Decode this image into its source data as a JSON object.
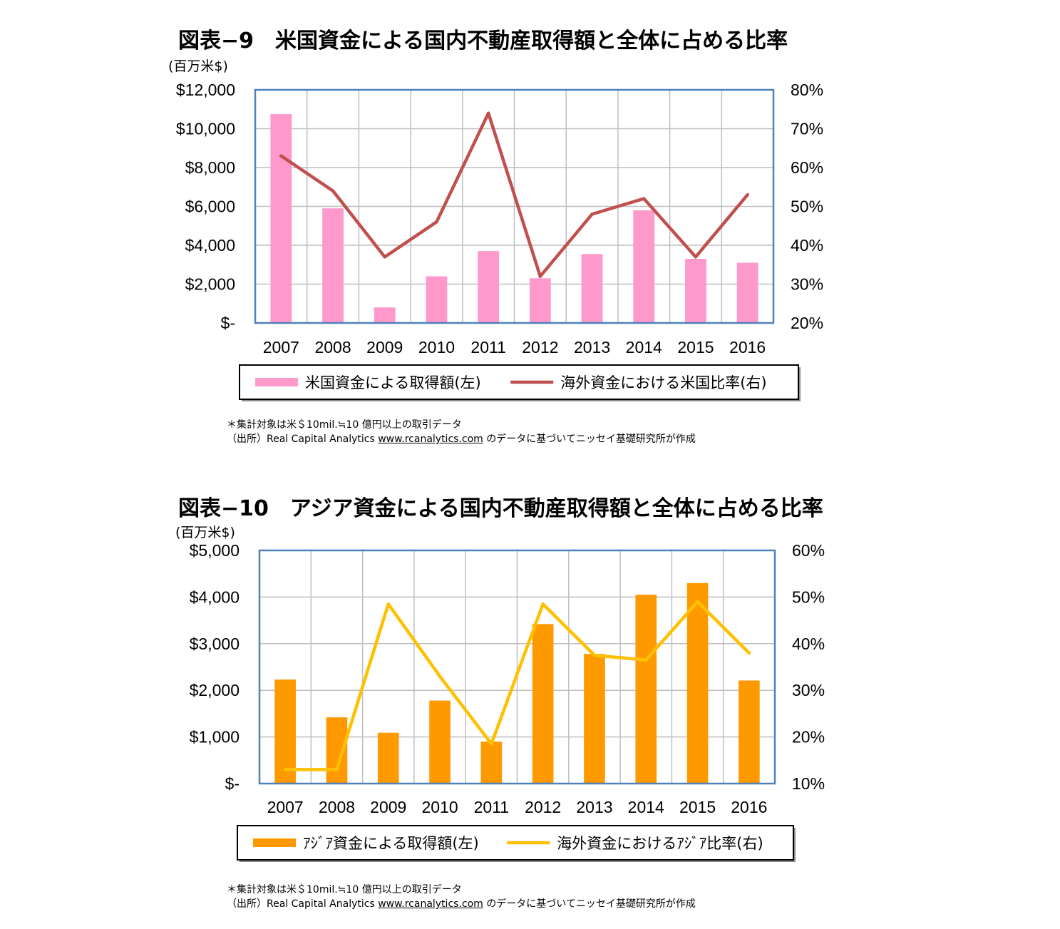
{
  "charts": [
    {
      "title": "図表−9　米国資金による国内不動産取得額と全体に占める比率",
      "unit": "(百万米$)",
      "footnote_line1": "＊集計対象は米＄10mil.≒10 億円以上の取引データ",
      "footnote_line2_prefix": "（出所）Real Capital Analytics ",
      "footnote_url": "www.rcanalytics.com",
      "footnote_line2_suffix": " のデータに基づいてニッセイ基礎研究所が作成"
    },
    {
      "title": "図表−10　アジア資金による国内不動産取得額と全体に占める比率",
      "unit": "(百万米$)",
      "footnote_line1": "＊集計対象は米＄10mil.≒10 億円以上の取引データ",
      "footnote_line2_prefix": "（出所）Real Capital Analytics ",
      "footnote_url": "www.rcanalytics.com",
      "footnote_line2_suffix": " のデータに基づいてニッセイ基礎研究所が作成"
    }
  ],
  "chart_data": [
    {
      "type": "bar+line",
      "categories": [
        "2007",
        "2008",
        "2009",
        "2010",
        "2011",
        "2012",
        "2013",
        "2014",
        "2015",
        "2016"
      ],
      "series": [
        {
          "name": "米国資金による取得額(左)",
          "type": "bar",
          "axis": "left",
          "color": "#ff99cc",
          "values": [
            10750,
            5900,
            800,
            2400,
            3700,
            2300,
            3550,
            5800,
            3300,
            3100
          ]
        },
        {
          "name": "海外資金における米国比率(右)",
          "type": "line",
          "axis": "right",
          "color": "#c0504d",
          "values": [
            63,
            54,
            37,
            46,
            74,
            32,
            48,
            52,
            37,
            53
          ]
        }
      ],
      "y_left": {
        "min": 0,
        "max": 12000,
        "ticks": [
          "$-",
          "$2,000",
          "$4,000",
          "$6,000",
          "$8,000",
          "$10,000",
          "$12,000"
        ]
      },
      "y_right": {
        "min": 20,
        "max": 80,
        "ticks": [
          "20%",
          "30%",
          "40%",
          "50%",
          "60%",
          "70%",
          "80%"
        ]
      },
      "grid": true,
      "legend_position": "bottom"
    },
    {
      "type": "bar+line",
      "categories": [
        "2007",
        "2008",
        "2009",
        "2010",
        "2011",
        "2012",
        "2013",
        "2014",
        "2015",
        "2016"
      ],
      "series": [
        {
          "name": "ｱｼﾞｱ資金による取得額(左)",
          "type": "bar",
          "axis": "left",
          "color": "#ff9900",
          "values": [
            2230,
            1420,
            1090,
            1780,
            900,
            3420,
            2780,
            4050,
            4300,
            2210
          ]
        },
        {
          "name": "海外資金におけるｱｼﾞｱ比率(右)",
          "type": "line",
          "axis": "right",
          "color": "#ffc000",
          "values": [
            13,
            13,
            48.5,
            33,
            18.5,
            48.5,
            37.5,
            36.5,
            49,
            38
          ]
        }
      ],
      "y_left": {
        "min": 0,
        "max": 5000,
        "ticks": [
          "$-",
          "$1,000",
          "$2,000",
          "$3,000",
          "$4,000",
          "$5,000"
        ]
      },
      "y_right": {
        "min": 10,
        "max": 60,
        "ticks": [
          "10%",
          "20%",
          "30%",
          "40%",
          "50%",
          "60%"
        ]
      },
      "grid": true,
      "legend_position": "bottom"
    }
  ]
}
